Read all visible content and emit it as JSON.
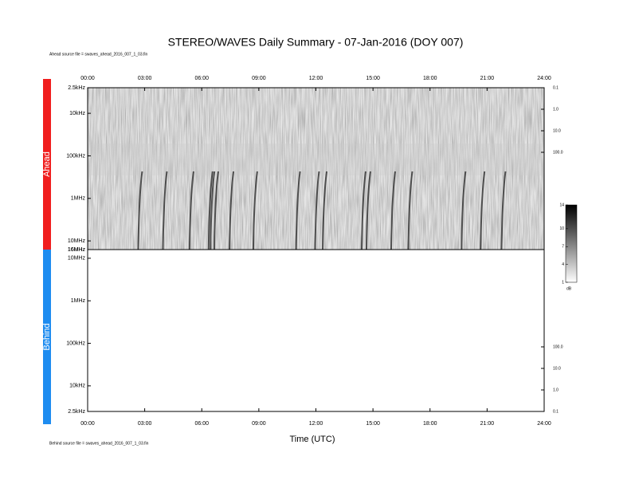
{
  "chart_data": {
    "type": "spectrogram",
    "title": "STEREO/WAVES Daily Summary - 07-Jan-2016 (DOY 007)",
    "ahead_source": "Ahead source file = swaves_ahead_2016_007_1_03.fin",
    "behind_source": "Behind source file = swaves_ahead_2016_007_1_03.fin",
    "xlabel": "Time (UTC)",
    "xlim": [
      0,
      24
    ],
    "xticks": [
      {
        "value": 0,
        "label": "00:00"
      },
      {
        "value": 3,
        "label": "03:00"
      },
      {
        "value": 6,
        "label": "06:00"
      },
      {
        "value": 9,
        "label": "09:00"
      },
      {
        "value": 12,
        "label": "12:00"
      },
      {
        "value": 15,
        "label": "15:00"
      },
      {
        "value": 18,
        "label": "18:00"
      },
      {
        "value": 21,
        "label": "21:00"
      },
      {
        "value": 24,
        "label": "24:00"
      }
    ],
    "log_scale": true,
    "panels": [
      {
        "name": "Ahead",
        "color": "#f01e1e",
        "ylim": [
          2500,
          16000000
        ],
        "yticks": [
          {
            "value": 2500,
            "label": "2.5kHz"
          },
          {
            "value": 10000,
            "label": "10kHz"
          },
          {
            "value": 100000,
            "label": "100kHz"
          },
          {
            "value": 1000000,
            "label": "1MHz"
          },
          {
            "value": 10000000,
            "label": "10MHz"
          },
          {
            "value": 16000000,
            "label": "16MHz"
          }
        ],
        "y2lim": [
          0.1,
          3300000
        ],
        "y2ticks": [
          0.1,
          {
            "value": 1,
            "label": "1.0"
          },
          {
            "value": 10,
            "label": "10.0"
          },
          {
            "value": 100,
            "label": "100.0"
          }
        ],
        "burst_times": [
          2.7,
          4.0,
          5.4,
          6.4,
          6.5,
          6.7,
          7.5,
          8.75,
          11.0,
          12.0,
          12.4,
          14.45,
          14.7,
          16.0,
          16.9,
          19.7,
          20.7,
          21.8
        ]
      },
      {
        "name": "Behind",
        "color": "#1e8cf0",
        "ylim": [
          16000000,
          2500
        ],
        "yticks": [
          {
            "value": 16000000,
            "label": "16MHz"
          },
          {
            "value": 10000000,
            "label": "10MHz"
          },
          {
            "value": 1000000,
            "label": "1MHz"
          },
          {
            "value": 100000,
            "label": "100kHz"
          },
          {
            "value": 10000,
            "label": "10kHz"
          },
          {
            "value": 2500,
            "label": "2.5kHz"
          }
        ],
        "y2lim": [
          3300000,
          0.1
        ],
        "y2ticks": [
          {
            "value": 100,
            "label": "100.0"
          },
          {
            "value": 10,
            "label": "10.0"
          },
          {
            "value": 1,
            "label": "1.0"
          },
          0.1
        ],
        "burst_times": []
      }
    ],
    "colorbar": {
      "label": "dB",
      "lim": [
        1,
        14
      ],
      "ticks": [
        1,
        4,
        7,
        10,
        14
      ]
    }
  }
}
